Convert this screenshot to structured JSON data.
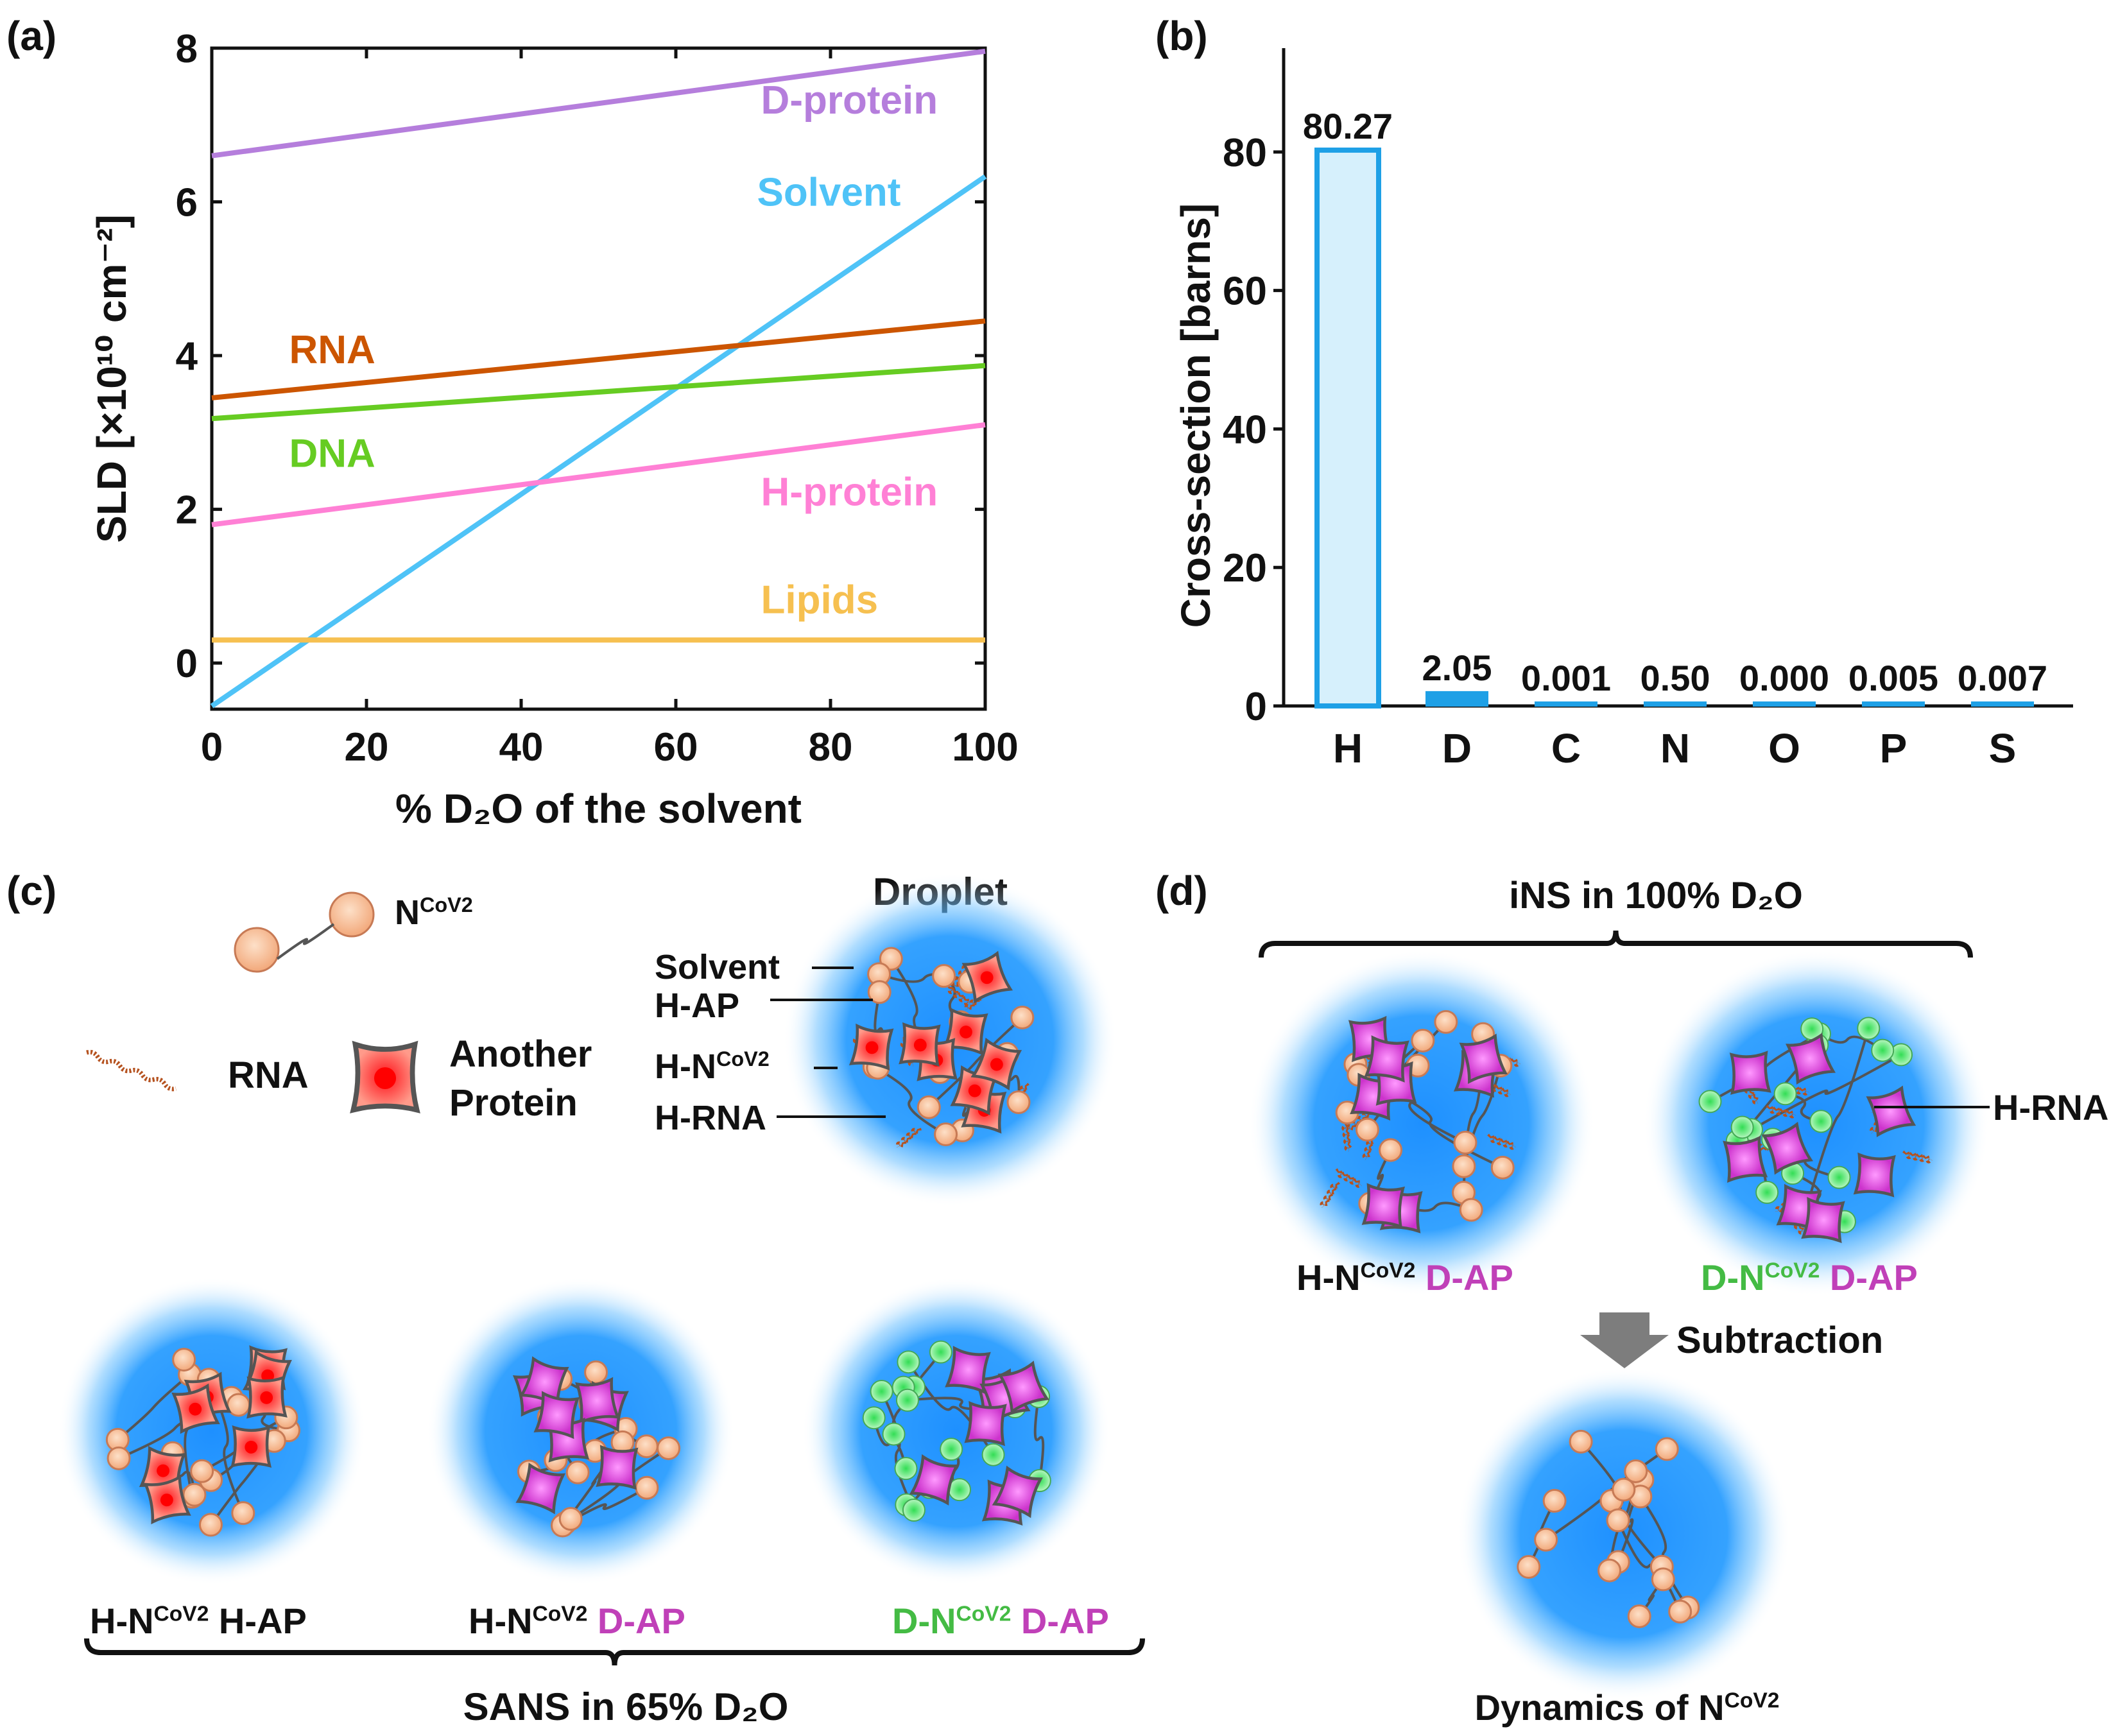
{
  "panel_labels": {
    "a": "(a)",
    "b": "(b)",
    "c": "(c)",
    "d": "(d)"
  },
  "chart_data": [
    {
      "type": "line",
      "panel": "(a)",
      "xlabel": "% D₂O of the solvent",
      "ylabel": "SLD [×10¹⁰ cm⁻²]",
      "xlim": [
        0,
        100
      ],
      "ylim": [
        -0.6,
        8
      ],
      "xticks": [
        0,
        20,
        40,
        60,
        80,
        100
      ],
      "yticks": [
        0,
        2,
        4,
        6,
        8
      ],
      "grid": false,
      "series": [
        {
          "name": "D-protein",
          "color": "#b57edc",
          "x": [
            0,
            100
          ],
          "y": [
            6.6,
            7.96
          ]
        },
        {
          "name": "Solvent",
          "color": "#4fc3f7",
          "x": [
            0,
            100
          ],
          "y": [
            -0.56,
            6.33
          ]
        },
        {
          "name": "RNA",
          "color": "#cc5500",
          "x": [
            0,
            100
          ],
          "y": [
            3.45,
            4.45
          ]
        },
        {
          "name": "DNA",
          "color": "#66cc22",
          "x": [
            0,
            100
          ],
          "y": [
            3.18,
            3.87
          ]
        },
        {
          "name": "H-protein",
          "color": "#ff80d5",
          "x": [
            0,
            100
          ],
          "y": [
            1.8,
            3.1
          ]
        },
        {
          "name": "Lipids",
          "color": "#f6c050",
          "x": [
            0,
            100
          ],
          "y": [
            0.3,
            0.3
          ]
        }
      ]
    },
    {
      "type": "bar",
      "panel": "(b)",
      "ylabel": "Cross-section [barns]",
      "categories": [
        "H",
        "D",
        "C",
        "N",
        "O",
        "P",
        "S"
      ],
      "values": [
        80.27,
        2.05,
        0.001,
        0.5,
        0.0,
        0.005,
        0.007
      ],
      "value_labels": [
        "80.27",
        "2.05",
        "0.001",
        "0.50",
        "0.000",
        "0.005",
        "0.007"
      ],
      "ylim": [
        0,
        95
      ],
      "yticks": [
        0,
        20,
        40,
        60,
        80
      ],
      "bar_color": "#1ea0e6",
      "fill_color": "#d6f0fc"
    }
  ],
  "diagram": {
    "panel_c": {
      "legend_n": "N",
      "legend_n_sup": "CoV2",
      "legend_rna": "RNA",
      "legend_protein_line1": "Another",
      "legend_protein_line2": "Protein",
      "droplet_title": "Droplet",
      "labels": {
        "solvent": "Solvent",
        "h_ap": "H-AP",
        "h_n": "H-N",
        "h_n_sup": "CoV2",
        "h_rna": "H-RNA"
      },
      "captions": [
        {
          "a": "H-N",
          "sup": "CoV2",
          "b": " H-AP",
          "a_color": "#111111",
          "b_color": "#111111"
        },
        {
          "a": "H-N",
          "sup": "CoV2",
          "b": " D-AP",
          "a_color": "#111111",
          "b_color": "#c040b8"
        },
        {
          "a": "D-N",
          "sup": "CoV2",
          "b": " D-AP",
          "a_color": "#44bb44",
          "b_color": "#c040b8"
        }
      ],
      "bracket_label": "SANS in 65% D₂O"
    },
    "panel_d": {
      "bracket_label": "iNS in 100% D₂O",
      "rna_label": "H-RNA",
      "captions": [
        {
          "a": "H-N",
          "sup": "CoV2",
          "b": " D-AP",
          "a_color": "#111111",
          "b_color": "#c040b8"
        },
        {
          "a": "D-N",
          "sup": "CoV2",
          "b": " D-AP",
          "a_color": "#44bb44",
          "b_color": "#c040b8"
        }
      ],
      "subtraction": "Subtraction",
      "dynamics": "Dynamics of N",
      "dynamics_sup": "CoV2"
    }
  }
}
